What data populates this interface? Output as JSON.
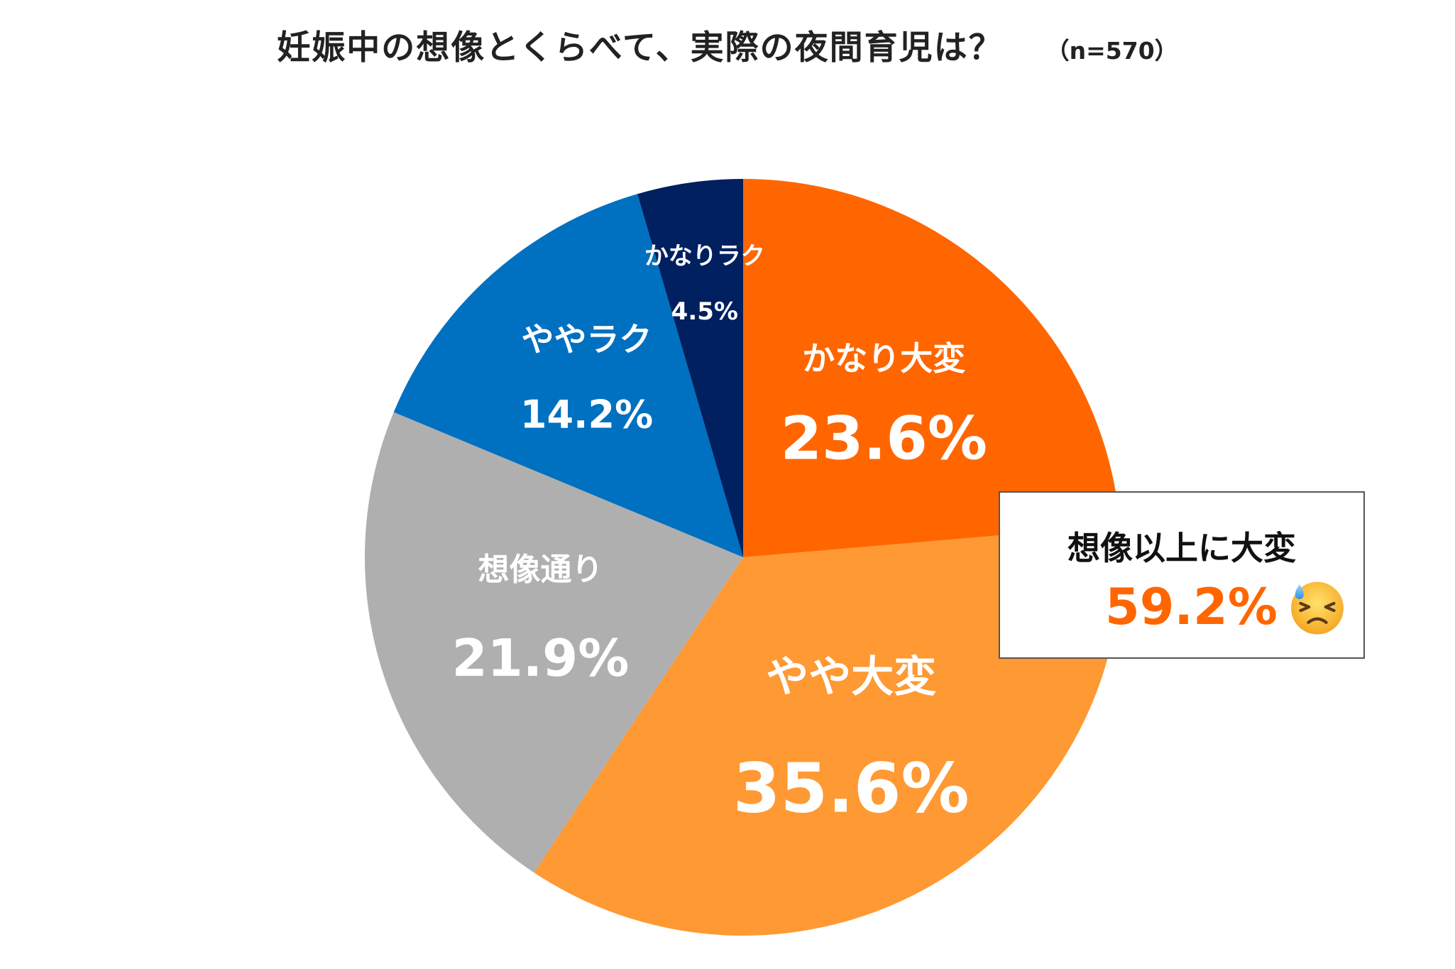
{
  "chart_data": {
    "type": "pie",
    "title": "妊娠中の想像とくらべて、実際の夜間育児は？",
    "sample_size": "（n=570）",
    "slices": [
      {
        "label": "かなり大変",
        "value": 23.6,
        "display": "23.6%",
        "color": "#ff6600"
      },
      {
        "label": "やや大変",
        "value": 35.6,
        "display": "35.6%",
        "color": "#ff9933"
      },
      {
        "label": "想像通り",
        "value": 21.9,
        "display": "21.9%",
        "color": "#afafaf"
      },
      {
        "label": "ややラク",
        "value": 14.2,
        "display": "14.2%",
        "color": "#0070c0"
      },
      {
        "label": "かなりラク",
        "value": 4.5,
        "display": "4.5%",
        "color": "#002060"
      }
    ],
    "start": "12 o'clock",
    "direction": "clockwise"
  },
  "callout": {
    "label": "想像以上に大変",
    "value": "59.2%",
    "value_color": "#ff6600",
    "icon": "downcast-face-with-sweat-icon"
  }
}
